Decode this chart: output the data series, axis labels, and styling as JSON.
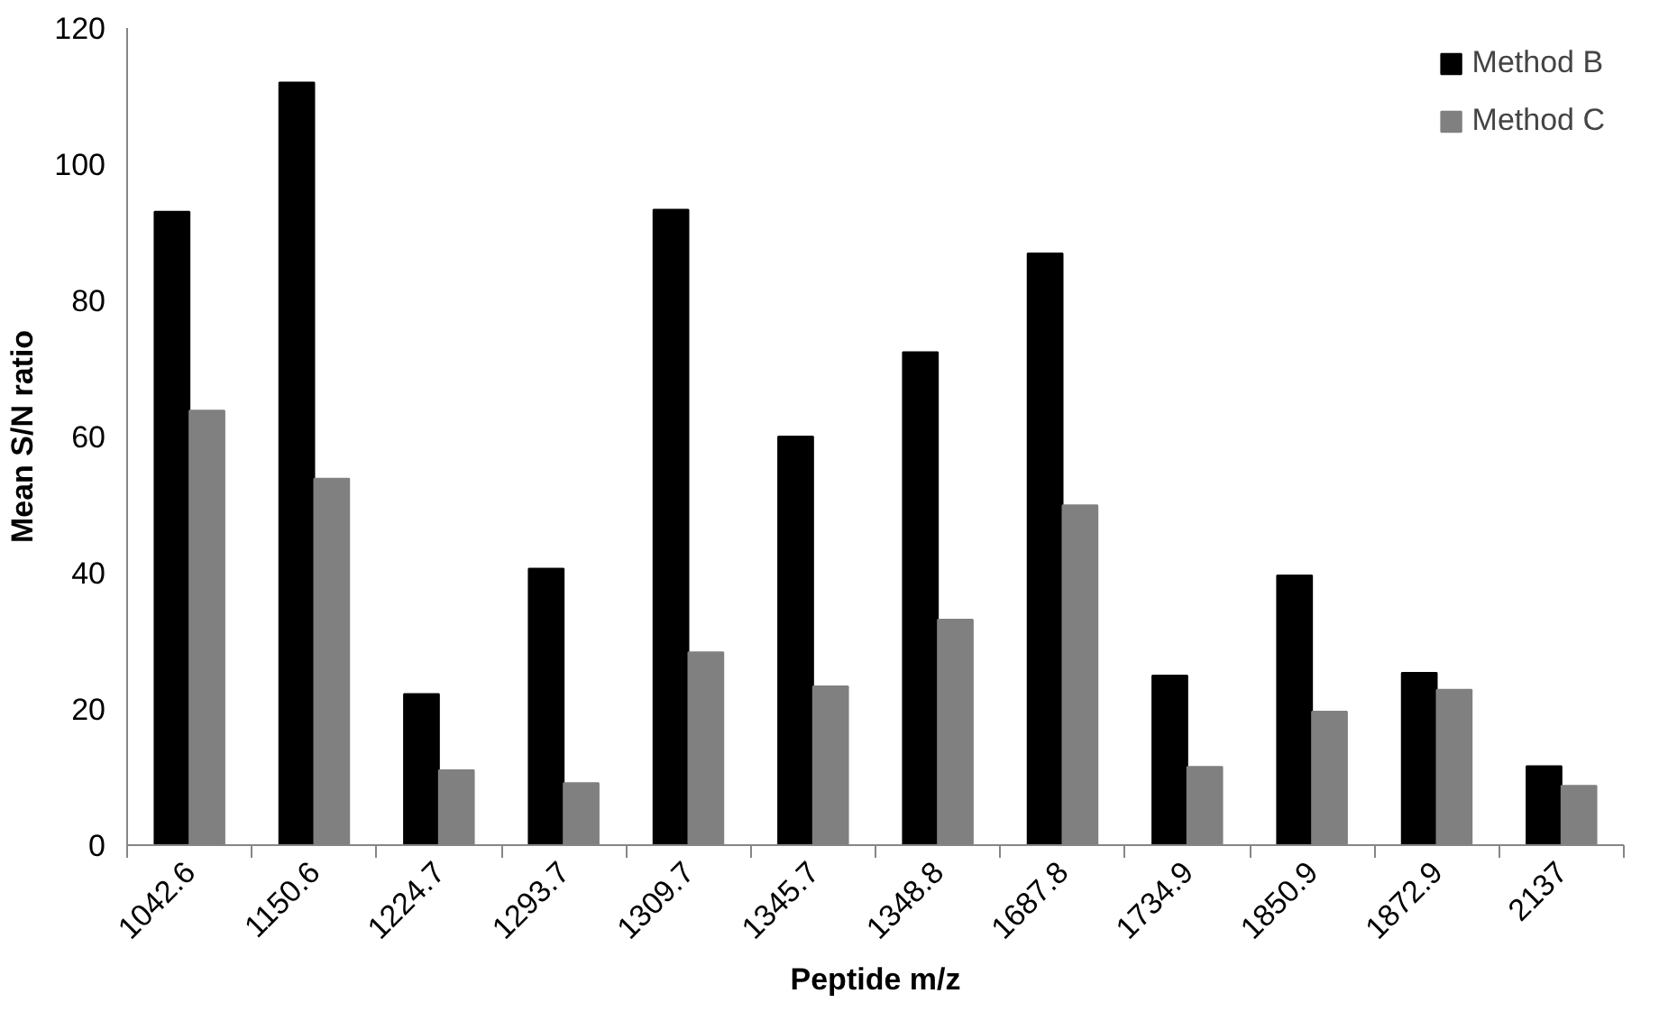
{
  "chart_data": {
    "type": "bar",
    "xlabel": "Peptide m/z",
    "ylabel": "Mean S/N ratio",
    "categories": [
      "1042.6",
      "1150.6",
      "1224.7",
      "1293.7",
      "1309.7",
      "1345.7",
      "1348.8",
      "1687.8",
      "1734.9",
      "1850.9",
      "1872.9",
      "2137"
    ],
    "series": [
      {
        "name": "Method B",
        "color": "#000000",
        "values": [
          93.0,
          112.0,
          22.2,
          40.6,
          93.3,
          60.0,
          72.4,
          86.9,
          24.9,
          39.6,
          25.3,
          11.6
        ]
      },
      {
        "name": "Method C",
        "color": "#808080",
        "values": [
          63.8,
          53.8,
          11.0,
          9.1,
          28.3,
          23.3,
          33.1,
          49.9,
          11.5,
          19.6,
          22.8,
          8.7
        ]
      }
    ],
    "ylim": [
      0,
      120
    ],
    "yticks": [
      0,
      20,
      40,
      60,
      80,
      100,
      120
    ],
    "grid": false,
    "legend": "top right"
  }
}
